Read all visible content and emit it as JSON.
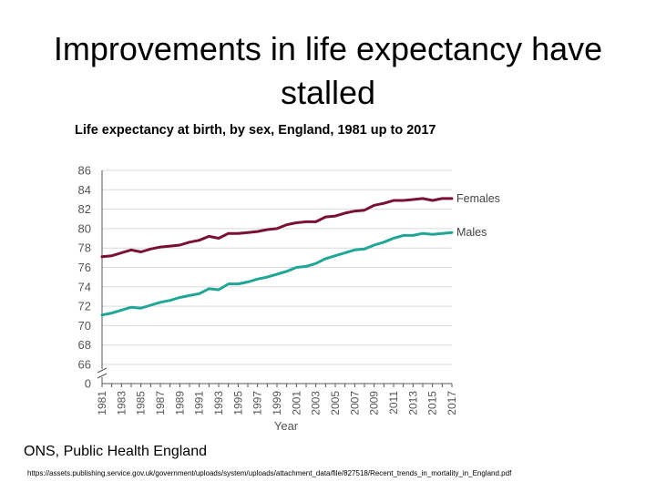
{
  "slide": {
    "title": "Improvements in life expectancy have stalled",
    "source": "ONS, Public Health England",
    "url": "https://assets.publishing.service.gov.uk/government/uploads/system/uploads/attachment_data/file/827518/Recent_trends_in_mortality_in_England.pdf"
  },
  "chart_data": {
    "type": "line",
    "title": "Life expectancy at birth, by sex, England, 1981 up to 2017",
    "xlabel": "Year",
    "ylabel": "",
    "ylim": [
      66,
      86
    ],
    "y_ticks": [
      0,
      66,
      68,
      70,
      72,
      74,
      76,
      78,
      80,
      82,
      84,
      86
    ],
    "axis_break": true,
    "grid": true,
    "x": [
      1981,
      1982,
      1983,
      1984,
      1985,
      1986,
      1987,
      1988,
      1989,
      1990,
      1991,
      1992,
      1993,
      1994,
      1995,
      1996,
      1997,
      1998,
      1999,
      2000,
      2001,
      2002,
      2003,
      2004,
      2005,
      2006,
      2007,
      2008,
      2009,
      2010,
      2011,
      2012,
      2013,
      2014,
      2015,
      2016,
      2017
    ],
    "x_tick_labels": [
      "1981",
      "1983",
      "1985",
      "1987",
      "1989",
      "1991",
      "1993",
      "1995",
      "1997",
      "1999",
      "2001",
      "2003",
      "2005",
      "2007",
      "2009",
      "2011",
      "2013",
      "2015",
      "2017"
    ],
    "series": [
      {
        "name": "Females",
        "color": "#7b1035",
        "values": [
          77.1,
          77.2,
          77.5,
          77.8,
          77.6,
          77.9,
          78.1,
          78.2,
          78.3,
          78.6,
          78.8,
          79.2,
          79.0,
          79.5,
          79.5,
          79.6,
          79.7,
          79.9,
          80.0,
          80.4,
          80.6,
          80.7,
          80.7,
          81.2,
          81.3,
          81.6,
          81.8,
          81.9,
          82.4,
          82.6,
          82.9,
          82.9,
          83.0,
          83.1,
          82.9,
          83.1,
          83.1
        ]
      },
      {
        "name": "Males",
        "color": "#20a694",
        "values": [
          71.1,
          71.3,
          71.6,
          71.9,
          71.8,
          72.1,
          72.4,
          72.6,
          72.9,
          73.1,
          73.3,
          73.8,
          73.7,
          74.3,
          74.3,
          74.5,
          74.8,
          75.0,
          75.3,
          75.6,
          76.0,
          76.1,
          76.4,
          76.9,
          77.2,
          77.5,
          77.8,
          77.9,
          78.3,
          78.6,
          79.0,
          79.3,
          79.3,
          79.5,
          79.4,
          79.5,
          79.6
        ]
      }
    ]
  }
}
